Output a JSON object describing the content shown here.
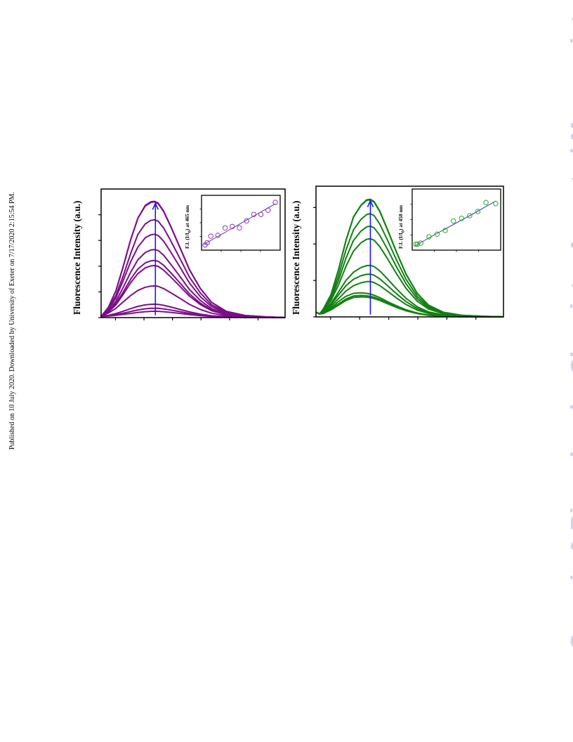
{
  "side_note": "Published on 10 July 2020. Downloaded by University of Exeter on 7/17/2020 2:15:54 PM.",
  "watermark": "Organic & Biomolecular Chemistry Accepted Manuscript",
  "chart_data": [
    {
      "type": "line",
      "ylabel": "Fluorescence Intensity (a.u.)",
      "xlabel": "",
      "line_color": "#7b0f87",
      "arrow_color": "#1a1aee",
      "x": [
        0,
        0.04,
        0.08,
        0.12,
        0.16,
        0.2,
        0.24,
        0.27,
        0.29,
        0.31,
        0.34,
        0.38,
        0.43,
        0.48,
        0.54,
        0.6,
        0.68,
        0.78,
        0.9,
        1.0
      ],
      "series": [
        {
          "values": [
            0.01,
            0.014,
            0.02,
            0.028,
            0.036,
            0.045,
            0.051,
            0.054,
            0.055,
            0.054,
            0.051,
            0.045,
            0.036,
            0.026,
            0.017,
            0.01,
            0.005,
            0.002,
            0.001,
            0
          ]
        },
        {
          "values": [
            0.01,
            0.016,
            0.025,
            0.038,
            0.052,
            0.066,
            0.076,
            0.08,
            0.081,
            0.08,
            0.075,
            0.065,
            0.051,
            0.036,
            0.022,
            0.012,
            0.006,
            0.002,
            0.001,
            0
          ]
        },
        {
          "values": [
            0.01,
            0.02,
            0.035,
            0.055,
            0.077,
            0.097,
            0.11,
            0.115,
            0.116,
            0.114,
            0.106,
            0.091,
            0.07,
            0.049,
            0.03,
            0.016,
            0.007,
            0.003,
            0.001,
            0
          ]
        },
        {
          "values": [
            0.01,
            0.04,
            0.08,
            0.135,
            0.19,
            0.235,
            0.262,
            0.272,
            0.274,
            0.27,
            0.25,
            0.213,
            0.165,
            0.115,
            0.07,
            0.038,
            0.016,
            0.006,
            0.002,
            0
          ]
        },
        {
          "values": [
            0.01,
            0.05,
            0.11,
            0.2,
            0.3,
            0.38,
            0.43,
            0.447,
            0.45,
            0.443,
            0.41,
            0.348,
            0.268,
            0.185,
            0.112,
            0.06,
            0.025,
            0.009,
            0.003,
            0
          ]
        },
        {
          "values": [
            0.01,
            0.055,
            0.12,
            0.22,
            0.33,
            0.42,
            0.473,
            0.49,
            0.494,
            0.487,
            0.452,
            0.385,
            0.296,
            0.205,
            0.124,
            0.066,
            0.027,
            0.01,
            0.003,
            0
          ]
        },
        {
          "values": [
            0.01,
            0.06,
            0.14,
            0.26,
            0.39,
            0.5,
            0.562,
            0.584,
            0.588,
            0.58,
            0.539,
            0.458,
            0.352,
            0.243,
            0.147,
            0.078,
            0.032,
            0.012,
            0.004,
            0
          ]
        },
        {
          "values": [
            0.01,
            0.07,
            0.17,
            0.32,
            0.48,
            0.61,
            0.69,
            0.716,
            0.72,
            0.71,
            0.66,
            0.562,
            0.432,
            0.298,
            0.18,
            0.096,
            0.039,
            0.014,
            0.004,
            0
          ]
        },
        {
          "values": [
            0.01,
            0.08,
            0.19,
            0.36,
            0.55,
            0.72,
            0.81,
            0.84,
            0.845,
            0.833,
            0.774,
            0.659,
            0.506,
            0.35,
            0.211,
            0.112,
            0.046,
            0.016,
            0.005,
            0
          ]
        },
        {
          "values": [
            0.01,
            0.09,
            0.23,
            0.44,
            0.67,
            0.86,
            0.97,
            1.0,
            1.005,
            0.99,
            0.92,
            0.783,
            0.6,
            0.415,
            0.25,
            0.133,
            0.054,
            0.019,
            0.006,
            0
          ]
        },
        {
          "values": [
            0.01,
            0.09,
            0.23,
            0.44,
            0.67,
            0.86,
            0.965,
            0.995,
            1.0,
            0.985,
            0.916,
            0.78,
            0.598,
            0.413,
            0.249,
            0.132,
            0.054,
            0.019,
            0.006,
            0
          ]
        }
      ],
      "arrow": {
        "x": 0.295,
        "from": 0.02,
        "to": 1.0
      },
      "inset": {
        "type": "scatter",
        "ylabel_prefix": "F.I. (I/I",
        "ylabel_sub": "0",
        "ylabel_suffix": ") at 465 nm",
        "marker_color": "#9b30b0",
        "fit_color": "#2d3a9e",
        "points": [
          [
            0.02,
            0.05
          ],
          [
            0.05,
            0.1
          ],
          [
            0.1,
            0.24
          ],
          [
            0.2,
            0.26
          ],
          [
            0.3,
            0.42
          ],
          [
            0.4,
            0.45
          ],
          [
            0.5,
            0.42
          ],
          [
            0.6,
            0.57
          ],
          [
            0.7,
            0.71
          ],
          [
            0.8,
            0.71
          ],
          [
            0.9,
            0.8
          ],
          [
            1.0,
            0.97
          ]
        ],
        "fit": [
          [
            0.0,
            0.06
          ],
          [
            0.25,
            0.28
          ],
          [
            0.5,
            0.5
          ],
          [
            0.75,
            0.72
          ],
          [
            1.0,
            0.94
          ]
        ]
      }
    },
    {
      "type": "line",
      "ylabel": "Fluorescence Intensity (a.u.)",
      "xlabel": "",
      "line_color": "#118011",
      "arrow_color": "#1a1aee",
      "x": [
        0,
        0.02,
        0.04,
        0.08,
        0.12,
        0.16,
        0.2,
        0.24,
        0.27,
        0.29,
        0.31,
        0.34,
        0.38,
        0.43,
        0.48,
        0.54,
        0.6,
        0.68,
        0.78,
        0.9,
        1.0
      ],
      "series": [
        {
          "values": [
            0.04,
            0.025,
            0.03,
            0.06,
            0.1,
            0.14,
            0.165,
            0.17,
            0.168,
            0.163,
            0.156,
            0.14,
            0.113,
            0.08,
            0.052,
            0.028,
            0.014,
            0.005,
            0.002,
            0.001,
            0
          ]
        },
        {
          "values": [
            0.04,
            0.025,
            0.03,
            0.065,
            0.11,
            0.152,
            0.178,
            0.183,
            0.18,
            0.175,
            0.167,
            0.15,
            0.12,
            0.086,
            0.056,
            0.03,
            0.015,
            0.006,
            0.002,
            0.001,
            0
          ]
        },
        {
          "values": [
            0.04,
            0.025,
            0.035,
            0.075,
            0.13,
            0.175,
            0.2,
            0.205,
            0.2,
            0.194,
            0.184,
            0.164,
            0.131,
            0.094,
            0.061,
            0.033,
            0.016,
            0.006,
            0.002,
            0.001,
            0
          ]
        },
        {
          "values": [
            0.04,
            0.025,
            0.04,
            0.09,
            0.155,
            0.22,
            0.265,
            0.29,
            0.3,
            0.3,
            0.292,
            0.266,
            0.22,
            0.16,
            0.106,
            0.058,
            0.029,
            0.011,
            0.004,
            0.001,
            0
          ]
        },
        {
          "values": [
            0.04,
            0.025,
            0.045,
            0.105,
            0.185,
            0.265,
            0.32,
            0.35,
            0.362,
            0.363,
            0.354,
            0.323,
            0.268,
            0.196,
            0.13,
            0.071,
            0.036,
            0.014,
            0.005,
            0.001,
            0
          ]
        },
        {
          "values": [
            0.04,
            0.025,
            0.05,
            0.115,
            0.21,
            0.31,
            0.38,
            0.42,
            0.436,
            0.438,
            0.428,
            0.391,
            0.325,
            0.238,
            0.158,
            0.086,
            0.043,
            0.017,
            0.006,
            0.002,
            0
          ]
        },
        {
          "values": [
            0.04,
            0.025,
            0.055,
            0.14,
            0.27,
            0.43,
            0.56,
            0.63,
            0.66,
            0.665,
            0.652,
            0.598,
            0.498,
            0.366,
            0.243,
            0.133,
            0.067,
            0.026,
            0.009,
            0.003,
            0
          ]
        },
        {
          "values": [
            0.04,
            0.025,
            0.06,
            0.155,
            0.31,
            0.5,
            0.65,
            0.73,
            0.765,
            0.772,
            0.757,
            0.694,
            0.578,
            0.424,
            0.282,
            0.154,
            0.077,
            0.03,
            0.01,
            0.003,
            0
          ]
        },
        {
          "values": [
            0.04,
            0.025,
            0.065,
            0.17,
            0.35,
            0.57,
            0.74,
            0.83,
            0.87,
            0.878,
            0.861,
            0.79,
            0.657,
            0.482,
            0.32,
            0.175,
            0.088,
            0.034,
            0.012,
            0.004,
            0
          ]
        },
        {
          "values": [
            0.04,
            0.025,
            0.07,
            0.19,
            0.4,
            0.65,
            0.85,
            0.95,
            0.995,
            1.0,
            0.98,
            0.9,
            0.748,
            0.549,
            0.365,
            0.2,
            0.1,
            0.039,
            0.013,
            0.004,
            0
          ]
        },
        {
          "values": [
            0.04,
            0.025,
            0.07,
            0.19,
            0.4,
            0.65,
            0.848,
            0.948,
            0.99,
            0.995,
            0.976,
            0.896,
            0.745,
            0.547,
            0.363,
            0.199,
            0.1,
            0.039,
            0.013,
            0.004,
            0
          ]
        }
      ],
      "arrow": {
        "x": 0.29,
        "from": 0.02,
        "to": 1.0
      },
      "inset": {
        "type": "scatter",
        "ylabel_prefix": "F.I. (I/I",
        "ylabel_sub": "0",
        "ylabel_suffix": ") at 458 nm",
        "marker_color": "#2fa82f",
        "fit_color": "#2d3a9e",
        "points": [
          [
            0.02,
            0.06
          ],
          [
            0.04,
            0.06
          ],
          [
            0.08,
            0.08
          ],
          [
            0.18,
            0.2
          ],
          [
            0.28,
            0.25
          ],
          [
            0.38,
            0.32
          ],
          [
            0.48,
            0.5
          ],
          [
            0.58,
            0.55
          ],
          [
            0.68,
            0.6
          ],
          [
            0.78,
            0.68
          ],
          [
            0.88,
            0.85
          ],
          [
            1.0,
            0.83
          ]
        ],
        "fit": [
          [
            0.0,
            0.02
          ],
          [
            0.25,
            0.24
          ],
          [
            0.5,
            0.45
          ],
          [
            0.75,
            0.66
          ],
          [
            1.0,
            0.88
          ]
        ]
      }
    }
  ]
}
